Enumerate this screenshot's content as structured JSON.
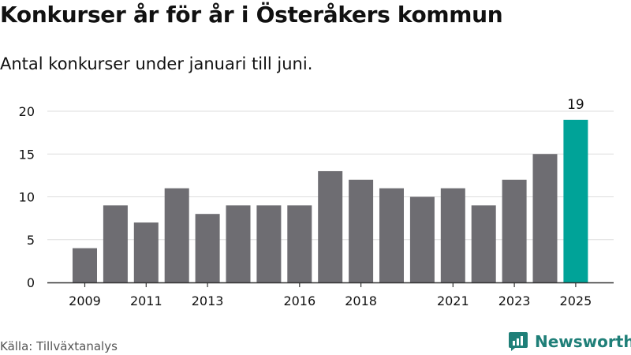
{
  "title": "Konkurser år för år i Österåkers kommun",
  "subtitle": "Antal konkurser under januari till juni.",
  "source": "Källa: Tillväxtanalys",
  "brand": {
    "name": "Newsworthy",
    "icon": "newsworthy-logo-icon",
    "color": "#1f7f78"
  },
  "colors": {
    "bar": "#6e6d72",
    "highlight": "#00a398",
    "grid": "#dddddd",
    "axis": "#333333",
    "text": "#111111"
  },
  "chart_data": {
    "type": "bar",
    "title": "Konkurser år för år i Österåkers kommun",
    "subtitle": "Antal konkurser under januari till juni.",
    "categories": [
      "2009",
      "2010",
      "2011",
      "2012",
      "2013",
      "2014",
      "2015",
      "2016",
      "2017",
      "2018",
      "2019",
      "2020",
      "2021",
      "2022",
      "2023",
      "2024",
      "2025"
    ],
    "values": [
      4,
      9,
      7,
      11,
      8,
      9,
      9,
      9,
      13,
      12,
      11,
      10,
      11,
      9,
      12,
      15,
      19
    ],
    "tick_labels_x": [
      "2009",
      "2011",
      "2013",
      "2016",
      "2018",
      "2021",
      "2023",
      "2025"
    ],
    "yticks": [
      0,
      5,
      10,
      15,
      20
    ],
    "ylim": [
      0,
      20
    ],
    "grid": true,
    "highlight": {
      "category": "2025",
      "label": "19"
    }
  }
}
